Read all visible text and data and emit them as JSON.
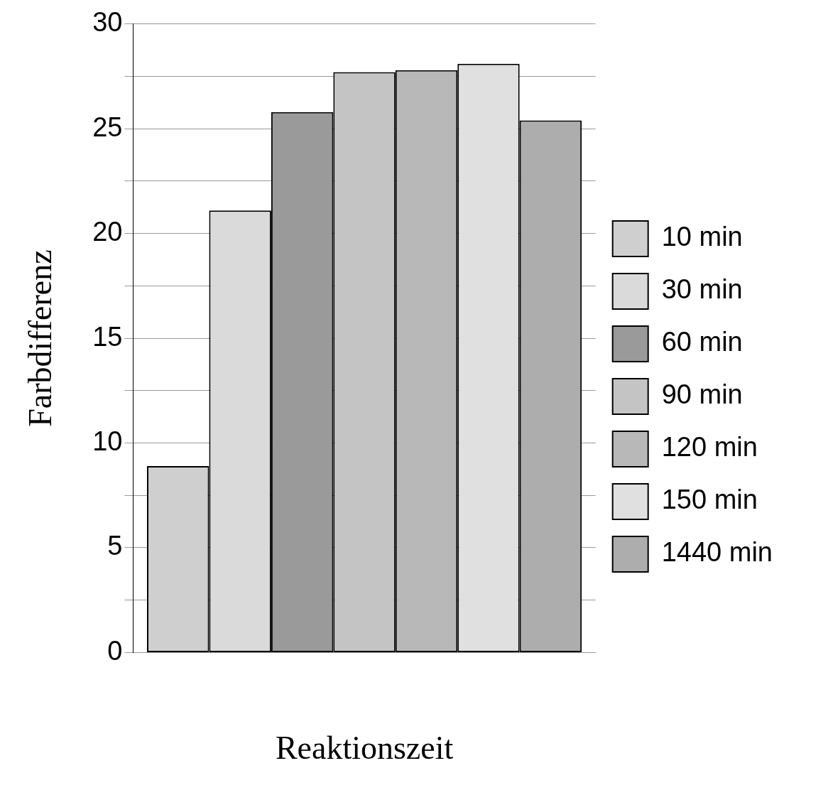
{
  "chart_data": {
    "type": "bar",
    "xlabel": "Reaktionszeit",
    "ylabel": "Farbdifferenz",
    "categories": [
      null
    ],
    "series": [
      {
        "name": "10 min",
        "color": "#cfcfcf",
        "values": [
          8.9
        ]
      },
      {
        "name": "30 min",
        "color": "#dadada",
        "values": [
          21.1
        ]
      },
      {
        "name": "60 min",
        "color": "#9a9a9a",
        "values": [
          25.8
        ]
      },
      {
        "name": "90 min",
        "color": "#c4c4c4",
        "values": [
          27.7
        ]
      },
      {
        "name": "120 min",
        "color": "#b8b8b8",
        "values": [
          27.8
        ]
      },
      {
        "name": "150 min",
        "color": "#e0e0e0",
        "values": [
          28.1
        ]
      },
      {
        "name": "1440 min",
        "color": "#adadad",
        "values": [
          25.4
        ]
      }
    ],
    "ylim": [
      0,
      30
    ],
    "yticks": [
      0,
      {
        "value": 2.5,
        "label": null
      },
      5,
      {
        "value": 7.5,
        "label": null
      },
      10,
      {
        "value": 12.5,
        "label": null
      },
      15,
      {
        "value": 17.5,
        "label": null
      },
      20,
      {
        "value": 22.5,
        "label": null
      },
      25,
      {
        "value": 27.5,
        "label": null
      },
      30
    ],
    "grid": "y",
    "legend": "right"
  }
}
